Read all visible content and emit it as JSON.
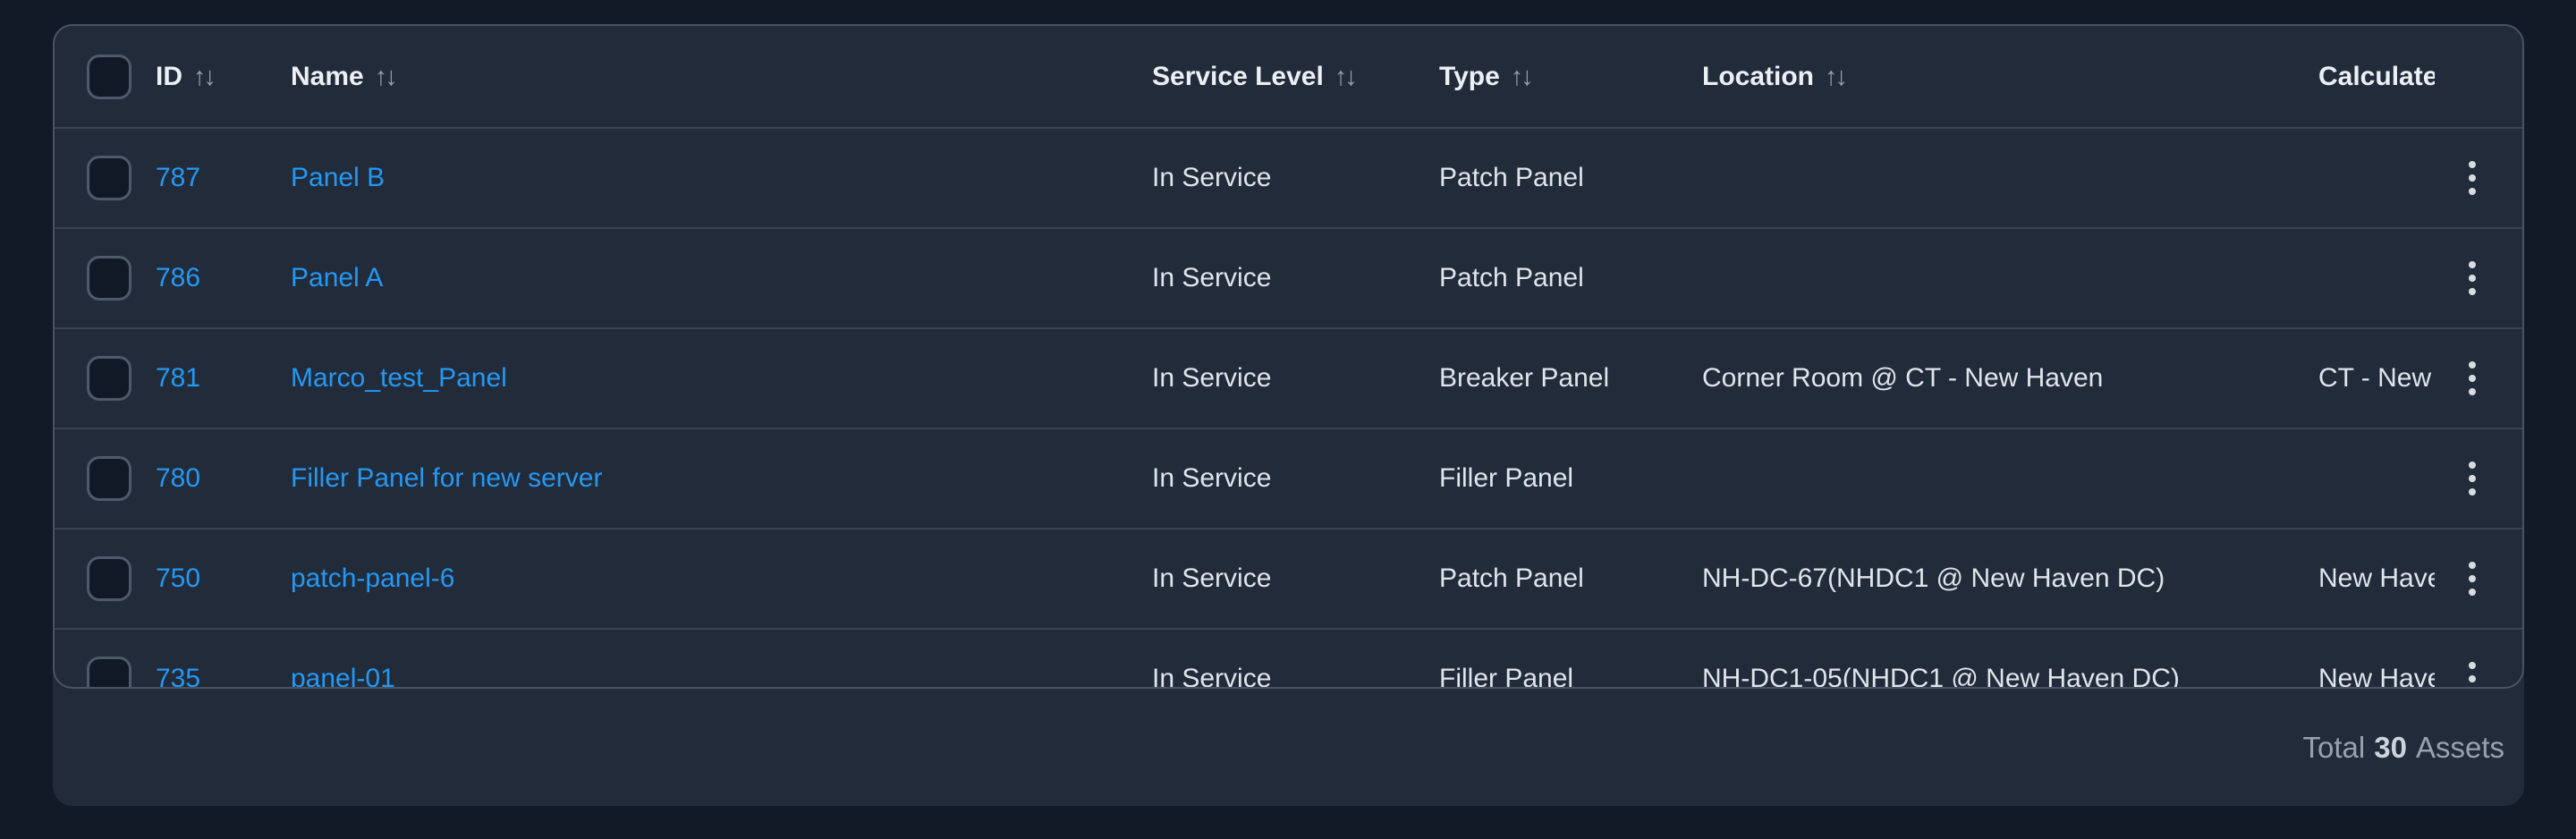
{
  "table": {
    "columns": [
      {
        "key": "id",
        "label": "ID"
      },
      {
        "key": "name",
        "label": "Name"
      },
      {
        "key": "service_level",
        "label": "Service Level"
      },
      {
        "key": "type",
        "label": "Type"
      },
      {
        "key": "location",
        "label": "Location"
      },
      {
        "key": "calculated",
        "label": "Calculated Location"
      }
    ],
    "rows": [
      {
        "id": "787",
        "name": "Panel B",
        "service_level": "In Service",
        "type": "Patch Panel",
        "location": "",
        "calculated": ""
      },
      {
        "id": "786",
        "name": "Panel A",
        "service_level": "In Service",
        "type": "Patch Panel",
        "location": "",
        "calculated": ""
      },
      {
        "id": "781",
        "name": "Marco_test_Panel",
        "service_level": "In Service",
        "type": "Breaker Panel",
        "location": "Corner Room @ CT - New Haven",
        "calculated": "CT - New Haven"
      },
      {
        "id": "780",
        "name": "Filler Panel for new server",
        "service_level": "In Service",
        "type": "Filler Panel",
        "location": "",
        "calculated": ""
      },
      {
        "id": "750",
        "name": "patch-panel-6",
        "service_level": "In Service",
        "type": "Patch Panel",
        "location": "NH-DC-67(NHDC1 @ New Haven DC)",
        "calculated": "New Haven DC"
      },
      {
        "id": "735",
        "name": "panel-01",
        "service_level": "In Service",
        "type": "Filler Panel",
        "location": "NH-DC1-05(NHDC1 @ New Haven DC)",
        "calculated": "New Haven DC"
      }
    ]
  },
  "footer": {
    "total_prefix": "Total",
    "total_count": "30",
    "total_suffix": "Assets"
  },
  "icons": {
    "sort": "↑↓",
    "kebab": "vertical-three-dots"
  },
  "colors": {
    "page_background": "#121927",
    "card_background": "#222b3a",
    "border": "#495364",
    "row_separator": "#3a4452",
    "link_blue": "#2498f3",
    "text_primary": "#e0e5ec",
    "text_muted": "#97a1b0"
  }
}
